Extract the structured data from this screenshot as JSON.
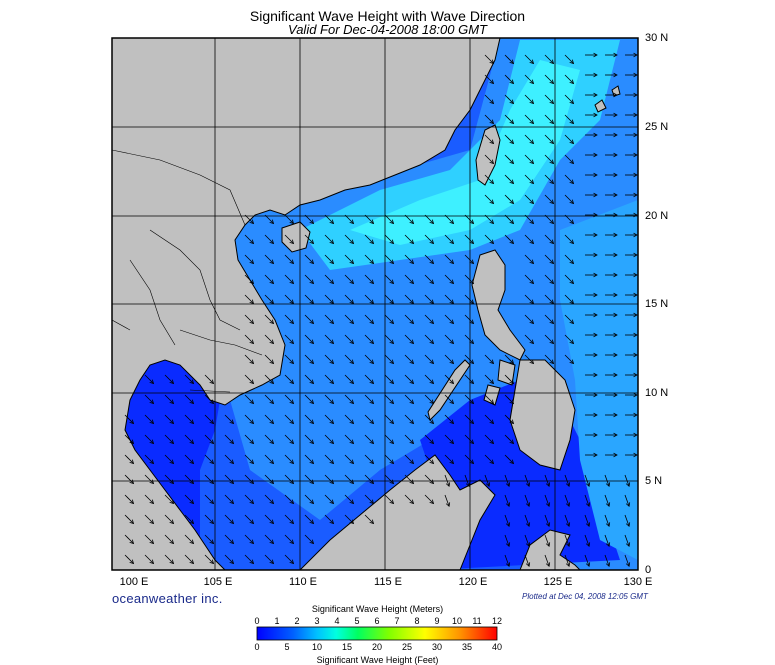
{
  "header": {
    "title": "Significant Wave Height with Wave Direction",
    "subtitle": "Valid For Dec-04-2008 18:00 GMT"
  },
  "map": {
    "lat_labels": [
      "30 N",
      "25 N",
      "20 N",
      "15 N",
      "10 N",
      "5 N",
      "0"
    ],
    "lon_labels": [
      "100 E",
      "105 E",
      "110 E",
      "115 E",
      "120 E",
      "125 E",
      "130 E"
    ],
    "land_color": "#c0c0c0",
    "water_colors": {
      "deep_blue": "#0a2bff",
      "mid_blue": "#1f6bff",
      "light_blue": "#2aa0ff",
      "cyan": "#2ee8ff",
      "dark": "#061070"
    }
  },
  "footer": {
    "brand": "oceanweather inc.",
    "plotted": "Plotted at Dec 04, 2008 12:05 GMT"
  },
  "legend": {
    "title_top": "Significant Wave Height (Meters)",
    "title_bottom": "Significant Wave Height (Feet)",
    "meters_ticks": [
      "0",
      "1",
      "2",
      "3",
      "4",
      "5",
      "6",
      "7",
      "8",
      "9",
      "10",
      "11",
      "12"
    ],
    "feet_ticks": [
      "0",
      "5",
      "10",
      "15",
      "20",
      "25",
      "30",
      "35",
      "40"
    ],
    "gradient_colors": [
      "#0000ff",
      "#0050ff",
      "#00a0ff",
      "#00e0ff",
      "#00ff90",
      "#40ff00",
      "#c0ff00",
      "#ffff00",
      "#ffc000",
      "#ff8000",
      "#ff4000",
      "#ff0000"
    ]
  }
}
